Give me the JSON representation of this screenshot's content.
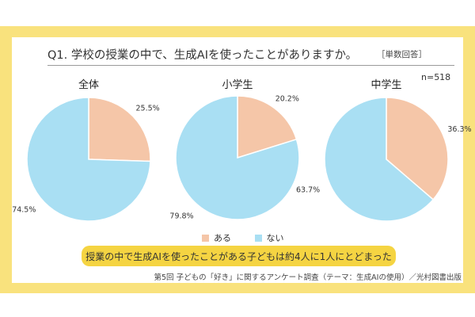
{
  "question": "Q1. 学校の授業の中で、生成AIを使ったことがありますか。",
  "answer_type": "［単数回答］",
  "sample_size": "n=518",
  "colors": {
    "frame": "#f9e27d",
    "aru": "#f5c6a8",
    "nai": "#a9dff3",
    "banner": "#f5d442"
  },
  "legend": [
    {
      "label": "ある",
      "color": "#f5c6a8"
    },
    {
      "label": "ない",
      "color": "#a9dff3"
    }
  ],
  "banner": "授業の中で生成AIを使ったことがある子どもは約4人に1人にとどまった",
  "footnote": "第5回 子どもの「好き」に関するアンケート調査（テーマ：生成AIの使用）／光村図書出版",
  "chart_data": [
    {
      "type": "pie",
      "title": "全体",
      "categories": [
        "ある",
        "ない"
      ],
      "values": [
        25.5,
        74.5
      ],
      "value_labels": [
        "25.5%",
        "74.5%"
      ],
      "start_angle": "12 o'clock, clockwise"
    },
    {
      "type": "pie",
      "title": "小学生",
      "categories": [
        "ある",
        "ない"
      ],
      "values": [
        20.2,
        79.8
      ],
      "value_labels": [
        "20.2%",
        "79.8%"
      ],
      "start_angle": "12 o'clock, clockwise"
    },
    {
      "type": "pie",
      "title": "中学生",
      "categories": [
        "ある",
        "ない"
      ],
      "values": [
        36.3,
        63.7
      ],
      "value_labels": [
        "36.3%",
        "63.7%"
      ],
      "start_angle": "12 o'clock, clockwise"
    }
  ]
}
